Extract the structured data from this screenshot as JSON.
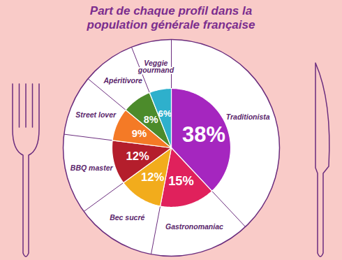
{
  "chart_data": {
    "type": "pie",
    "title": "Part de chaque profil dans la population générale française",
    "categories": [
      "Traditionista",
      "Gastronomaniac",
      "Bec sucré",
      "BBQ master",
      "Street lover",
      "Apéritivore",
      "Veggie gourmand"
    ],
    "values": [
      38,
      15,
      12,
      12,
      9,
      8,
      6
    ],
    "value_labels": [
      "38%",
      "15%",
      "12%",
      "12%",
      "9%",
      "8%",
      "6%"
    ],
    "colors": [
      "#a526bf",
      "#e0215c",
      "#f2ac1c",
      "#b41e2c",
      "#f47a26",
      "#4c8b2b",
      "#2eb0cc"
    ],
    "data_labels": true
  }
}
